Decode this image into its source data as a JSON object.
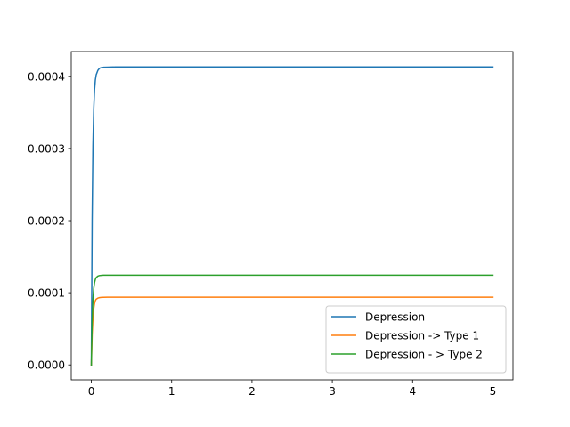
{
  "chart_data": {
    "type": "line",
    "title": "",
    "xlabel": "",
    "ylabel": "",
    "xlim": [
      -0.25,
      5.25
    ],
    "ylim": [
      -2.07e-05,
      0.0004343
    ],
    "xticks": [
      0,
      1,
      2,
      3,
      4,
      5
    ],
    "xtick_labels": [
      "0",
      "1",
      "2",
      "3",
      "4",
      "5"
    ],
    "yticks": [
      0,
      0.0001,
      0.0002,
      0.0003,
      0.0004
    ],
    "ytick_labels": [
      "0.0000",
      "0.0001",
      "0.0002",
      "0.0003",
      "0.0004"
    ],
    "grid": false,
    "legend_position": "lower-right",
    "series": [
      {
        "name": "Depression",
        "color": "#1f77b4",
        "x": [
          0,
          0.01,
          0.02,
          0.03,
          0.04,
          0.05,
          0.06,
          0.08,
          0.1,
          0.12,
          0.15,
          0.2,
          0.3,
          0.5,
          1,
          2,
          3,
          4,
          5
        ],
        "y": [
          0,
          0.0002,
          0.000304,
          0.000355,
          0.000381,
          0.000395,
          0.000402,
          0.000408,
          0.000411,
          0.000412,
          0.0004125,
          0.0004128,
          0.000413,
          0.000413,
          0.000413,
          0.000413,
          0.000413,
          0.000413,
          0.000413
        ]
      },
      {
        "name": "Depression -> Type 1",
        "color": "#ff7f0e",
        "x": [
          0,
          0.01,
          0.02,
          0.03,
          0.04,
          0.05,
          0.06,
          0.08,
          0.1,
          0.12,
          0.15,
          0.2,
          0.3,
          0.5,
          1,
          2,
          3,
          4,
          5
        ],
        "y": [
          0,
          4.2e-05,
          6.5e-05,
          7.8e-05,
          8.5e-05,
          8.9e-05,
          9.1e-05,
          9.25e-05,
          9.32e-05,
          9.35e-05,
          9.37e-05,
          9.38e-05,
          9.38e-05,
          9.38e-05,
          9.38e-05,
          9.38e-05,
          9.38e-05,
          9.38e-05,
          9.38e-05
        ]
      },
      {
        "name": "Depression - > Type 2",
        "color": "#2ca02c",
        "x": [
          0,
          0.01,
          0.02,
          0.03,
          0.04,
          0.05,
          0.06,
          0.08,
          0.1,
          0.12,
          0.15,
          0.2,
          0.3,
          0.5,
          1,
          2,
          3,
          4,
          5
        ],
        "y": [
          0,
          6e-05,
          9.1e-05,
          0.000106,
          0.000114,
          0.0001185,
          0.000121,
          0.000123,
          0.0001238,
          0.0001241,
          0.0001243,
          0.0001244,
          0.0001244,
          0.0001244,
          0.0001244,
          0.0001244,
          0.0001244,
          0.0001244,
          0.0001244
        ]
      }
    ]
  }
}
